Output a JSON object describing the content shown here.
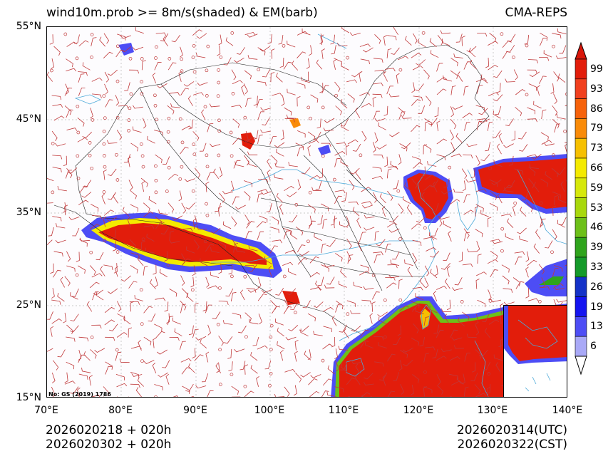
{
  "header": {
    "title": "wind10m.prob >= 8m/s(shaded) & EM(barb)",
    "source": "CMA-REPS"
  },
  "axes": {
    "lat_labels": [
      "55°N",
      "45°N",
      "35°N",
      "25°N",
      "15°N"
    ],
    "lon_labels": [
      "70°E",
      "80°E",
      "90°E",
      "100°E",
      "110°E",
      "120°E",
      "130°E",
      "140°E"
    ]
  },
  "colorbar": {
    "levels": [
      "99",
      "93",
      "86",
      "79",
      "73",
      "66",
      "59",
      "53",
      "46",
      "39",
      "33",
      "26",
      "19",
      "13",
      "6"
    ],
    "colors": [
      "#e21d0b",
      "#f1401e",
      "#f6620a",
      "#f98b08",
      "#f6c000",
      "#f4ea00",
      "#d6e80b",
      "#a8d80c",
      "#6dc019",
      "#2fa41c",
      "#159a2a",
      "#1432c8",
      "#1414f0",
      "#4d4df5",
      "#a9a9f7"
    ],
    "over_color": "#d9160a",
    "under_color": "#ffffff"
  },
  "map": {
    "review_number": "No: GS (2019) 1786",
    "barb_color": "#c0393b",
    "coast_color": "#4aa8d8",
    "boundary_color": "#222222"
  },
  "footer": {
    "init_line1": "2026020218  +  020h",
    "init_line2": "2026020302  +  020h",
    "valid_utc": "2026020314(UTC)",
    "valid_cst": "2026020322(CST)"
  }
}
